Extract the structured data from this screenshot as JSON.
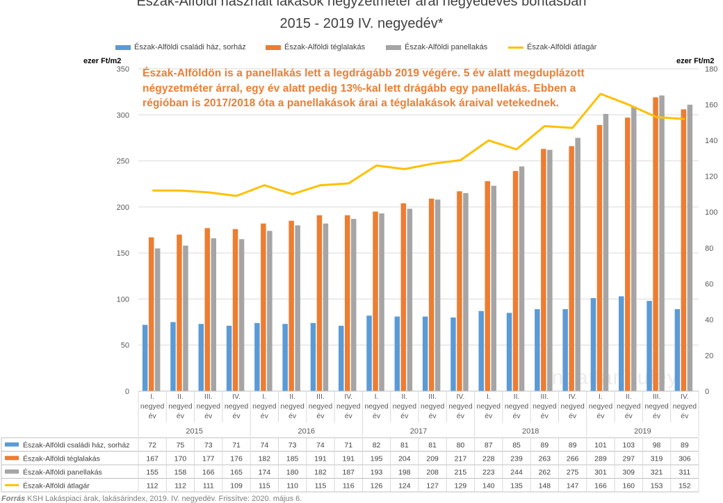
{
  "chart_data": {
    "type": "bar",
    "title": "Észak-Alföldi használt lakások négyzetméter árai negyedéves bontásban",
    "subtitle": "2015 - 2019 IV. negyedév*",
    "ylabel_left": "ezer Ft/m2",
    "ylabel_right": "ezer Ft/m2",
    "ylim_left": [
      0,
      350
    ],
    "ylim_right": [
      0,
      180
    ],
    "yticks_left": [
      0,
      50,
      100,
      150,
      200,
      250,
      300,
      350
    ],
    "yticks_right": [
      0,
      20,
      40,
      60,
      80,
      100,
      120,
      140,
      160,
      180
    ],
    "years": [
      "2015",
      "2016",
      "2017",
      "2018",
      "2019"
    ],
    "quarters": [
      "I.",
      "II.",
      "III.",
      "IV."
    ],
    "quarter_suffix_1": "negyed",
    "quarter_suffix_2": "év",
    "series": [
      {
        "name": "Észak-Alföldi családi ház, sorház",
        "kind": "bar",
        "axis": "left",
        "color": "#5b9bd5",
        "values": [
          72,
          75,
          73,
          71,
          74,
          73,
          74,
          71,
          82,
          81,
          81,
          80,
          87,
          85,
          89,
          89,
          101,
          103,
          98,
          89
        ]
      },
      {
        "name": "Észak-Alföldi téglalakás",
        "kind": "bar",
        "axis": "left",
        "color": "#ed7d31",
        "values": [
          167,
          170,
          177,
          176,
          182,
          185,
          191,
          191,
          195,
          204,
          209,
          217,
          228,
          239,
          263,
          266,
          289,
          297,
          319,
          306
        ]
      },
      {
        "name": "Észak-Alföldi panellakás",
        "kind": "bar",
        "axis": "left",
        "color": "#a5a5a5",
        "values": [
          155,
          158,
          166,
          165,
          174,
          180,
          182,
          187,
          193,
          198,
          208,
          215,
          223,
          244,
          262,
          275,
          301,
          309,
          321,
          311
        ]
      },
      {
        "name": "Észak-Alföldi átlagár",
        "kind": "line",
        "axis": "right",
        "color": "#ffc000",
        "values": [
          112,
          112,
          111,
          109,
          115,
          110,
          115,
          116,
          126,
          124,
          127,
          129,
          140,
          135,
          148,
          147,
          166,
          160,
          153,
          152
        ]
      }
    ]
  },
  "annotation": [
    "Észak-Alföldön is a panellakás lett a legdrágább 2019 végére. 5 év alatt megduplázott",
    "négyzetméter árral, egy év alatt pedig  13%-kal lett drágább egy  panellakás.  Ebben a",
    "régióban is 2017/2018 óta a panellakások árai a téglalakások áraival vetekednek."
  ],
  "watermark": "ingatlanhuley",
  "source": {
    "label": "Forrás",
    "text": " KSH Lakáspiaci árak, lakásárindex, 2019. IV. negyedév. Frissítve: 2020. május 6."
  }
}
